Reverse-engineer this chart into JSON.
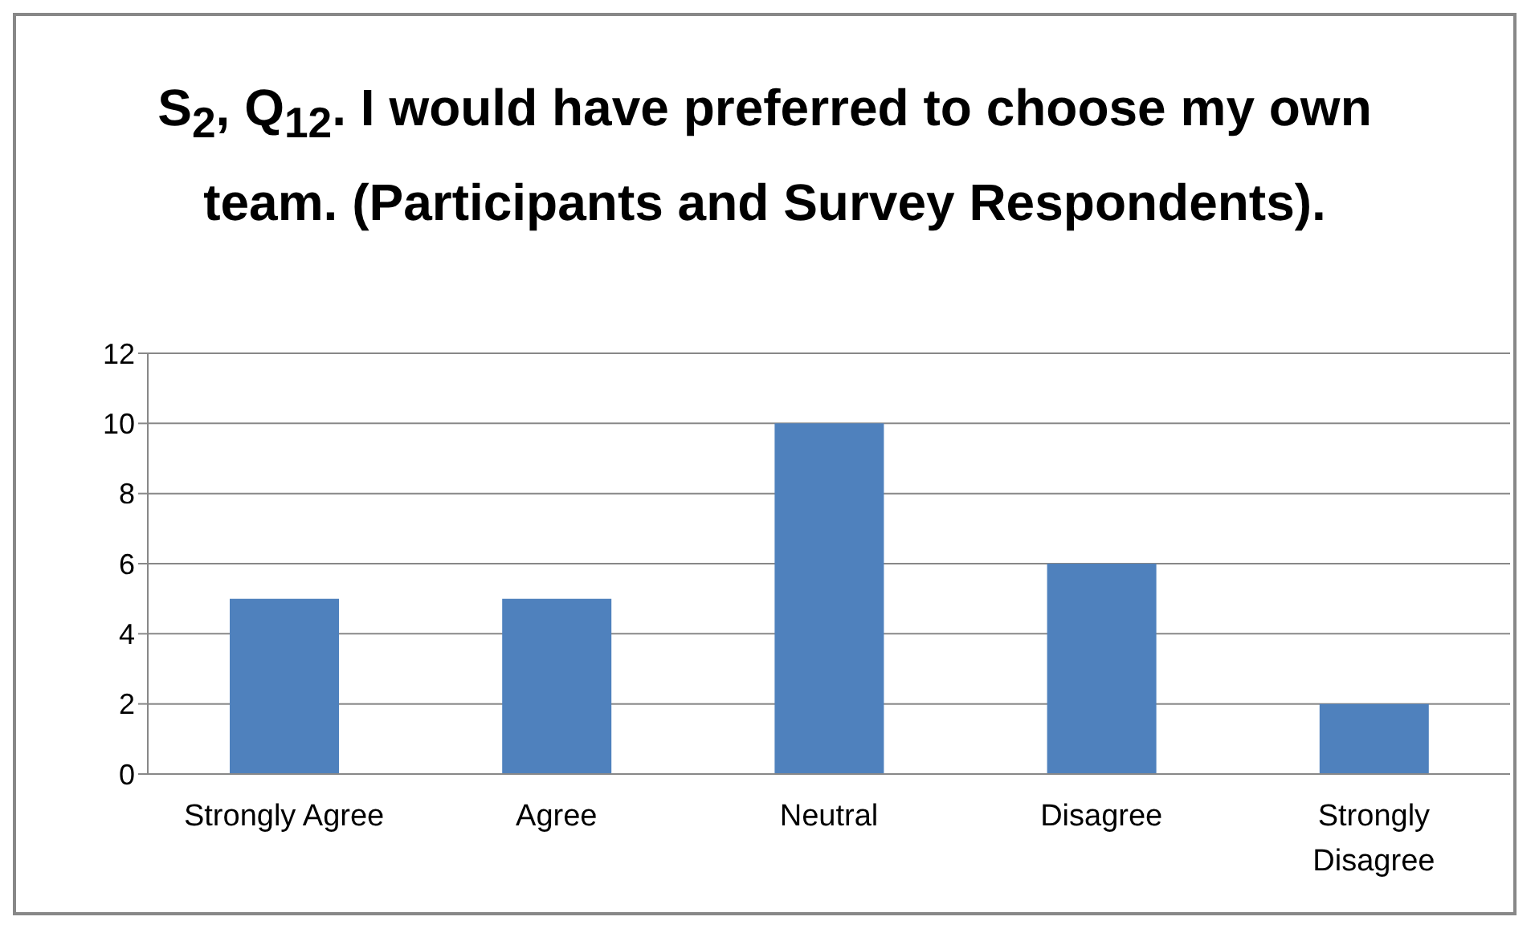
{
  "chart_data": {
    "type": "bar",
    "title": "S$_{2}$, Q$_{12}$. I would have preferred to choose my own team. (Participants and Survey Respondents).",
    "categories": [
      "Strongly Agree",
      "Agree",
      "Neutral",
      "Disagree",
      "Strongly Disagree"
    ],
    "values": [
      5,
      5,
      10,
      6,
      2
    ],
    "color": "#4f81bd",
    "ylim": [
      0,
      12
    ],
    "yticks": [
      0,
      2,
      4,
      6,
      8,
      10,
      12
    ],
    "grid": "y"
  }
}
